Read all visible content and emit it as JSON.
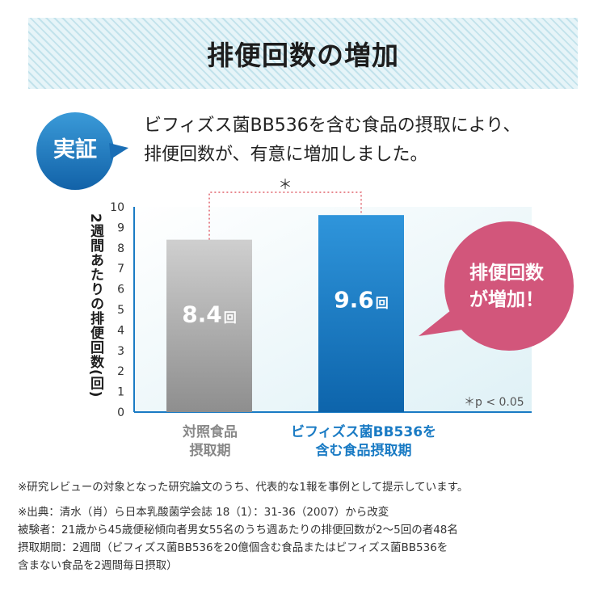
{
  "header": {
    "title": "排便回数の増加"
  },
  "badge": {
    "label": "実証"
  },
  "lead": {
    "line1": "ビフィズス菌BB536を含む食品の摂取により、",
    "line2": "排便回数が、有意に増加しました。"
  },
  "callout": {
    "line1": "排便回数",
    "line2": "が増加！"
  },
  "footnotes": {
    "review": "※研究レビューの対象となった研究論文のうち、代表的な1報を事例として提示しています。",
    "source": "※出典：清水（肖）ら日本乳酸菌学会誌 18（1）：31-36（2007）から改変",
    "subjects": "被験者：21歳から45歳便秘傾向者男女55名のうち週あたりの排便回数が2〜5回の者48名",
    "period1": "摂取期間：2週間（ビフィズス菌BB536を20億個含む食品またはビフィズス菌BB536を",
    "period2": "含まない食品を2週間毎日摂取）"
  },
  "colors": {
    "control_bar": "#a8a8a8",
    "test_bar": "#1a7bc4",
    "badge": "#1a7bc4",
    "callout": "#d2567b",
    "significance": "#e0606a"
  },
  "chart_data": {
    "type": "bar",
    "categories": [
      "対照食品\n摂取期",
      "ビフィズス菌BB536を\n含む食品摂取期"
    ],
    "values": [
      8.4,
      9.6
    ],
    "value_labels": [
      "8.4",
      "9.6"
    ],
    "value_unit": "回",
    "ylabel": "2週間あたりの排便回数(回)",
    "ylim": [
      0,
      10
    ],
    "yticks": [
      "0",
      "1",
      "2",
      "3",
      "4",
      "5",
      "6",
      "7",
      "8",
      "9",
      "10"
    ],
    "grid": false,
    "significance": {
      "marker": "＊",
      "note": "＊p < 0.05"
    }
  }
}
